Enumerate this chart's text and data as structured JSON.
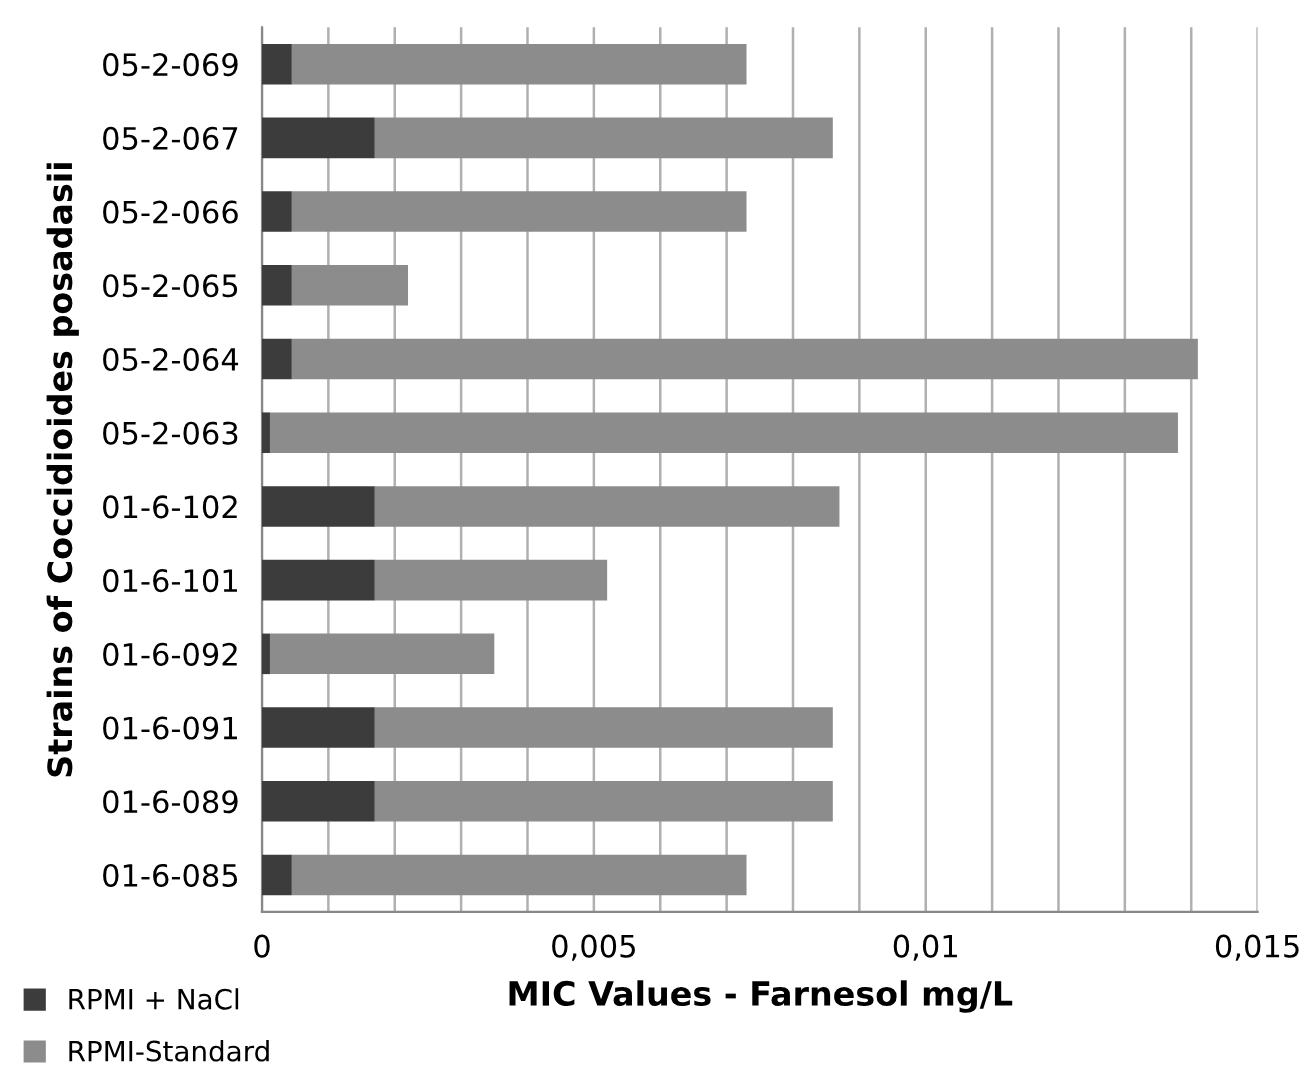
{
  "chart_data": {
    "type": "bar",
    "orientation": "horizontal",
    "stacked": true,
    "ylabel": "Strains of Coccidioides posadasii",
    "xlabel": "MIC Values - Farnesol mg/L",
    "categories": [
      "05-2-069",
      "05-2-067",
      "05-2-066",
      "05-2-065",
      "05-2-064",
      "05-2-063",
      "01-6-102",
      "01-6-101",
      "01-6-092",
      "01-6-091",
      "01-6-089",
      "01-6-085"
    ],
    "series": [
      {
        "name": "RPMI + NaCl",
        "color": "#3c3c3c",
        "values": [
          0.00045,
          0.0017,
          0.00045,
          0.00045,
          0.00045,
          0.00012,
          0.0017,
          0.0017,
          0.00012,
          0.0017,
          0.0017,
          0.00045
        ]
      },
      {
        "name": "RPMI-Standard",
        "color": "#8c8c8c",
        "values": [
          0.00685,
          0.0069,
          0.00685,
          0.00175,
          0.01365,
          0.01368,
          0.007,
          0.0035,
          0.00338,
          0.0069,
          0.0069,
          0.00685
        ]
      }
    ],
    "xlim": [
      0,
      0.015
    ],
    "xticks": [
      0,
      {
        "value": 0.001,
        "label": null
      },
      {
        "value": 0.002,
        "label": null
      },
      {
        "value": 0.003,
        "label": null
      },
      {
        "value": 0.004,
        "label": null
      },
      {
        "value": 0.005,
        "label": "0,005"
      },
      {
        "value": 0.006,
        "label": null
      },
      {
        "value": 0.007,
        "label": null
      },
      {
        "value": 0.008,
        "label": null
      },
      {
        "value": 0.009,
        "label": null
      },
      {
        "value": 0.01,
        "label": "0,01"
      },
      {
        "value": 0.011,
        "label": null
      },
      {
        "value": 0.012,
        "label": null
      },
      {
        "value": 0.013,
        "label": null
      },
      {
        "value": 0.014,
        "label": null
      },
      {
        "value": 0.015,
        "label": "0,015"
      }
    ],
    "grid": "x",
    "legend": "bottom left"
  }
}
